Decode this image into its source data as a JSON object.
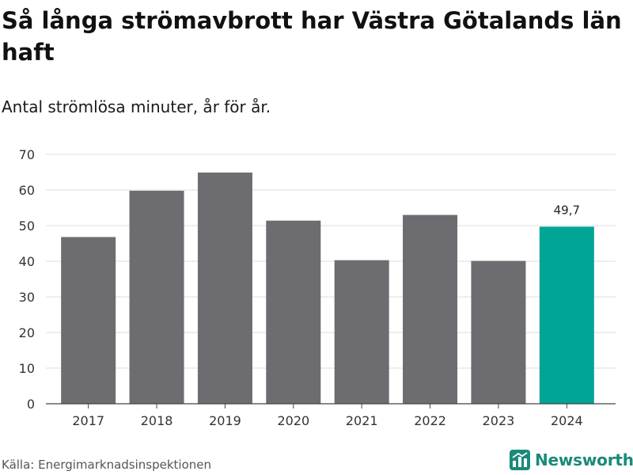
{
  "header": {
    "title": "Så långa strömavbrott har Västra Götalands län haft",
    "subtitle": "Antal strömlösa minuter, år för år."
  },
  "footer": {
    "source": "Källa: Energimarknadsinspektionen",
    "brand": "Newsworthy"
  },
  "colors": {
    "bar_default": "#6d6c71",
    "bar_highlight": "#00a596",
    "grid": "#dddddd",
    "brand": "#1a8a7a"
  },
  "chart_data": {
    "type": "bar",
    "title": "Så långa strömavbrott har Västra Götalands län haft",
    "subtitle": "Antal strömlösa minuter, år för år.",
    "categories": [
      "2017",
      "2018",
      "2019",
      "2020",
      "2021",
      "2022",
      "2023",
      "2024"
    ],
    "values": [
      46.8,
      59.8,
      64.9,
      51.4,
      40.3,
      53.0,
      40.1,
      49.7
    ],
    "highlight_index": 7,
    "data_labels": [
      {
        "index": 7,
        "text": "49,7"
      }
    ],
    "xlabel": "",
    "ylabel": "",
    "ylim": [
      0,
      70
    ],
    "yticks": [
      "0",
      "10",
      "20",
      "30",
      "40",
      "50",
      "60",
      "70"
    ],
    "grid": true
  }
}
